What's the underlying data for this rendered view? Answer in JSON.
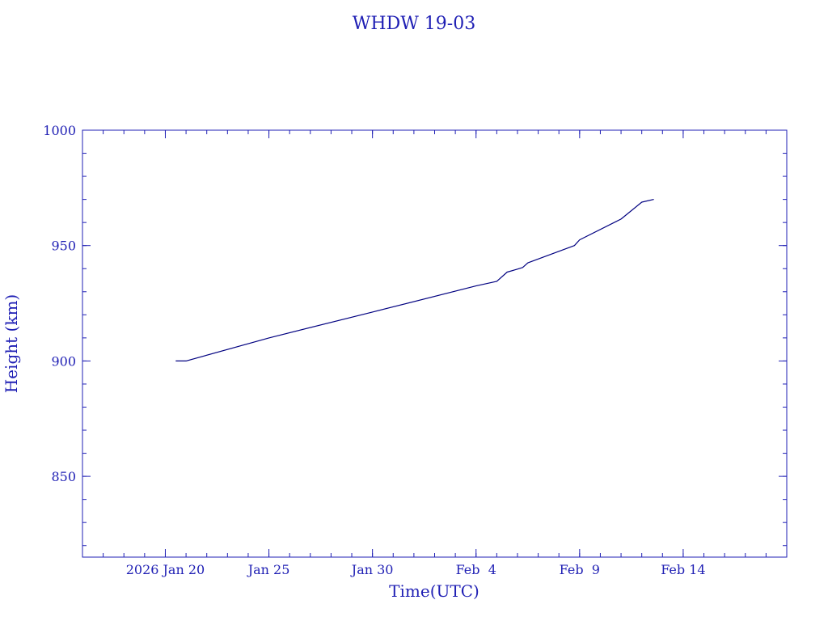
{
  "chart_data": {
    "type": "line",
    "title": "WHDW 19-03",
    "xlabel": "Time(UTC)",
    "ylabel": "Height (km)",
    "ylim": [
      815,
      1000
    ],
    "xlim": [
      "2026-01-16",
      "2026-02-19"
    ],
    "grid": false,
    "x_tick_labels": [
      "2026 Jan 20",
      "Jan 25",
      "Jan 30",
      "Feb  4",
      "Feb  9",
      "Feb 14"
    ],
    "x_ticks": [
      "2026-01-20",
      "2026-01-25",
      "2026-01-30",
      "2026-02-04",
      "2026-02-09",
      "2026-02-14"
    ],
    "y_tick_labels": [
      "850",
      "900",
      "950",
      "1000"
    ],
    "y_ticks": [
      850,
      900,
      950,
      1000
    ],
    "series": [
      {
        "name": "",
        "color": "#000080",
        "x": [
          "2026-01-20 12:00",
          "2026-01-21 00:00",
          "2026-01-25 00:00",
          "2026-01-30 00:00",
          "2026-02-04 00:00",
          "2026-02-05 00:00",
          "2026-02-05 12:00",
          "2026-02-06 00:00",
          "2026-02-06 06:00",
          "2026-02-06 12:00",
          "2026-02-08 00:00",
          "2026-02-08 18:00",
          "2026-02-09 00:00",
          "2026-02-11 00:00",
          "2026-02-12 00:00",
          "2026-02-12 14:00"
        ],
        "y": [
          900.0,
          900.0,
          910.0,
          921.2,
          932.5,
          934.5,
          938.5,
          939.8,
          940.5,
          942.5,
          947.5,
          950.0,
          952.5,
          961.5,
          968.8,
          970.0
        ]
      }
    ]
  }
}
